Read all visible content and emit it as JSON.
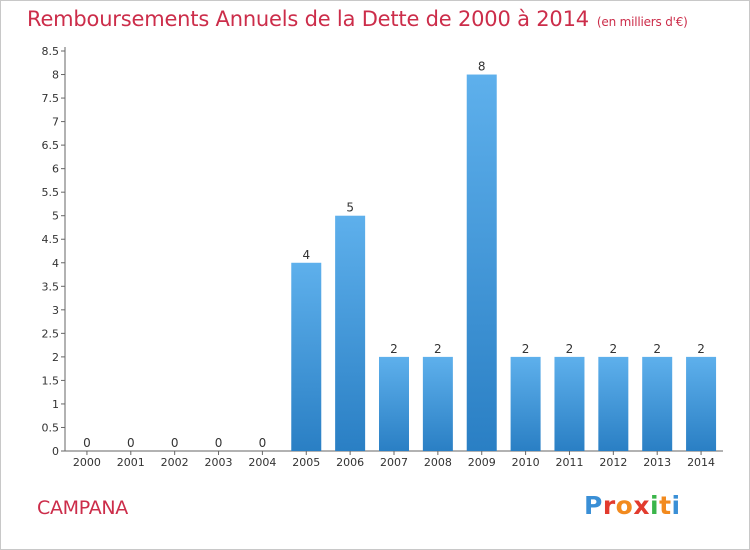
{
  "header": {
    "title": "Remboursements Annuels de la Dette de 2000 à 2014",
    "units": "(en milliers d'€)"
  },
  "commune": "CAMPANA",
  "logo": {
    "text": "Proxiti",
    "letters": [
      {
        "char": "P",
        "color": "#3a8fd6"
      },
      {
        "char": "r",
        "color": "#e23b2e"
      },
      {
        "char": "o",
        "color": "#f28a1e"
      },
      {
        "char": "x",
        "color": "#e23b2e"
      },
      {
        "char": "i",
        "color": "#3ab54a"
      },
      {
        "char": "t",
        "color": "#f28a1e"
      },
      {
        "char": "i",
        "color": "#3a8fd6"
      }
    ]
  },
  "colors": {
    "title": "#cc2d4a",
    "bar_top": "#5eb0ec",
    "bar_bottom": "#2a7fc4"
  },
  "chart_data": {
    "type": "bar",
    "categories": [
      "2000",
      "2001",
      "2002",
      "2003",
      "2004",
      "2005",
      "2006",
      "2007",
      "2008",
      "2009",
      "2010",
      "2011",
      "2012",
      "2013",
      "2014"
    ],
    "values": [
      0,
      0,
      0,
      0,
      0,
      4,
      5,
      2,
      2,
      8,
      2,
      2,
      2,
      2,
      2
    ],
    "data_labels": [
      "0",
      "0",
      "0",
      "0",
      "0",
      "4",
      "5",
      "2",
      "2",
      "8",
      "2",
      "2",
      "2",
      "2",
      "2"
    ],
    "y_ticks": [
      "0",
      "0.5",
      "1",
      "1.5",
      "2",
      "2.5",
      "3",
      "3.5",
      "4",
      "4.5",
      "5",
      "5.5",
      "6",
      "6.5",
      "7",
      "7.5",
      "8",
      "8.5"
    ],
    "ylim": [
      0,
      8.5
    ],
    "grid": false,
    "legend": "none"
  }
}
